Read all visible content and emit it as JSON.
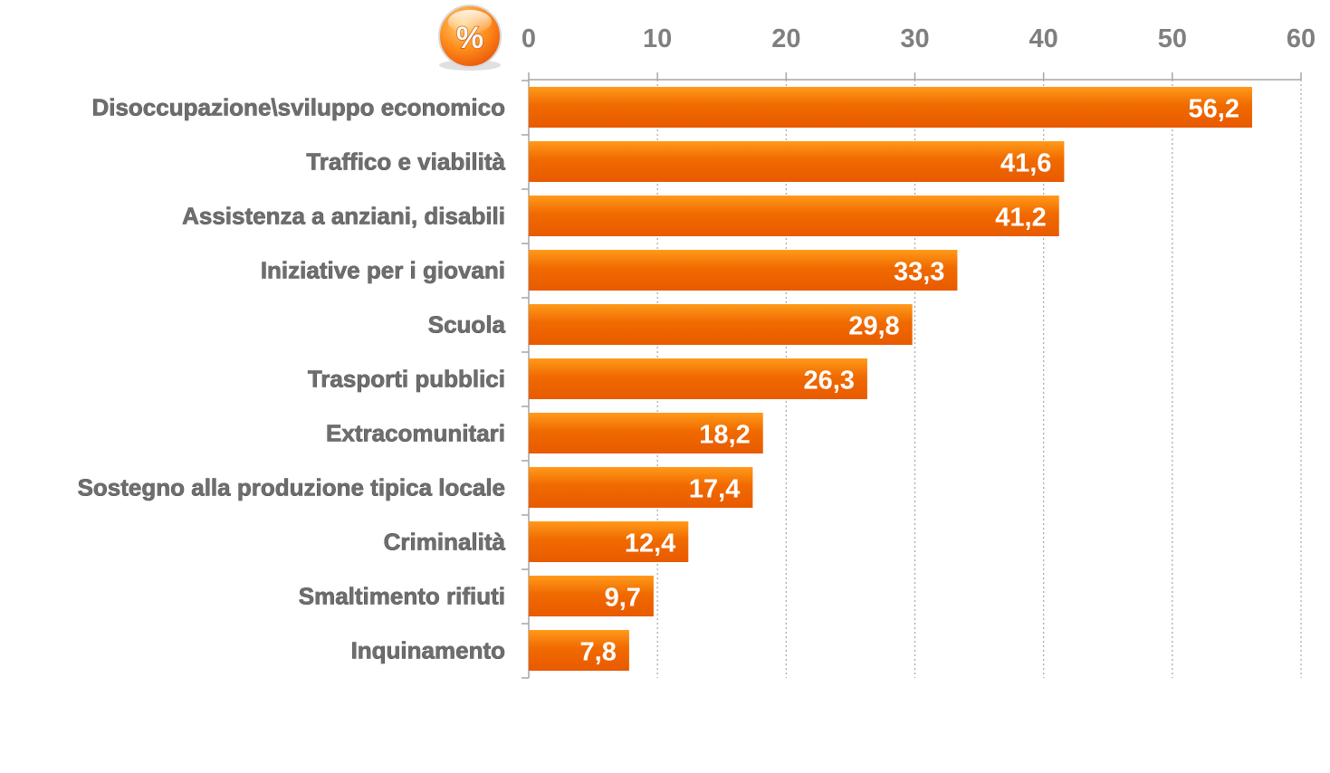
{
  "badge": {
    "symbol": "%",
    "color_light": "#ffd27a",
    "color_dark": "#e8560a"
  },
  "colors": {
    "bar_light": "#ff9a1a",
    "bar_dark": "#e85a00",
    "grid": "#a6a6a6",
    "tick_text": "#7f7f7f",
    "category_text": "#6e6e6e",
    "value_text": "#ffffff"
  },
  "chart_data": {
    "type": "bar",
    "orientation": "horizontal",
    "title": "",
    "xlabel": "",
    "ylabel": "",
    "xlim": [
      0,
      60
    ],
    "ticks": [
      "0",
      "10",
      "20",
      "30",
      "40",
      "50",
      "60"
    ],
    "tick_values": [
      0,
      10,
      20,
      30,
      40,
      50,
      60
    ],
    "axis_position": "top",
    "grid": true,
    "categories": [
      "Disoccupazione\\sviluppo economico",
      "Traffico e viabilità",
      "Assistenza a anziani, disabili",
      "Iniziative per i giovani",
      "Scuola",
      "Trasporti pubblici",
      "Extracomunitari",
      "Sostegno alla produzione tipica locale",
      "Criminalità",
      "Smaltimento rifiuti",
      "Inquinamento"
    ],
    "values": [
      56.2,
      41.6,
      41.2,
      33.3,
      29.8,
      26.3,
      18.2,
      17.4,
      12.4,
      9.7,
      7.8
    ],
    "value_labels": [
      "56,2",
      "41,6",
      "41,2",
      "33,3",
      "29,8",
      "26,3",
      "18,2",
      "17,4",
      "12,4",
      "9,7",
      "7,8"
    ]
  }
}
